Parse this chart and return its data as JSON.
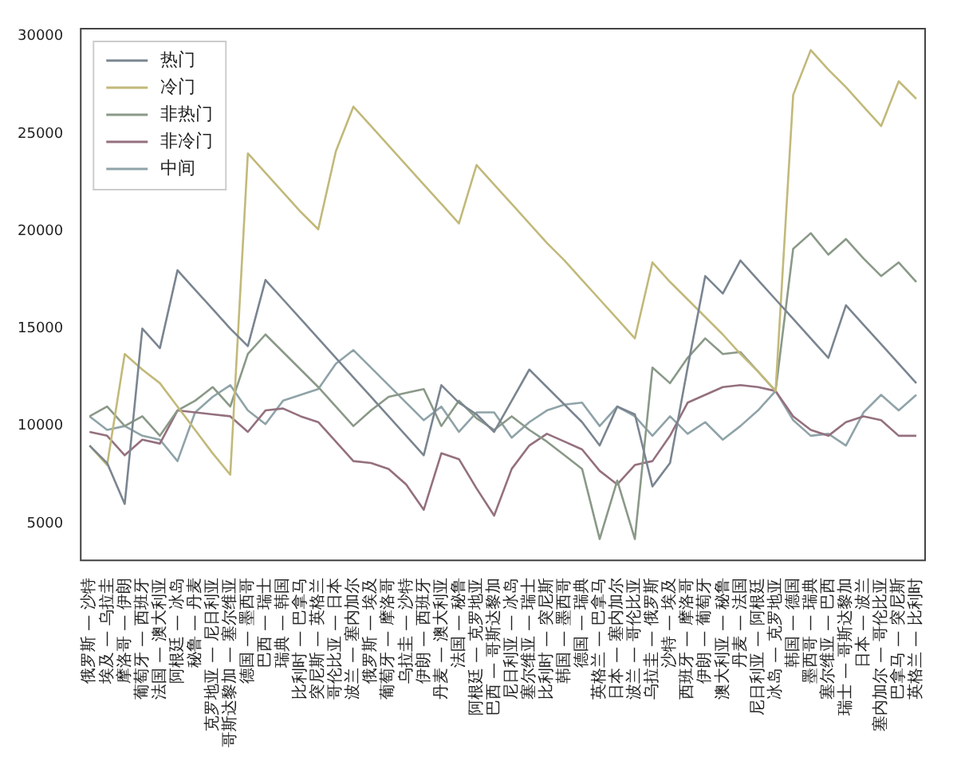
{
  "chart_data": {
    "type": "line",
    "categories": [
      "俄罗斯 — 沙特",
      "埃及 — 乌拉圭",
      "摩洛哥 — 伊朗",
      "葡萄牙 — 西班牙",
      "法国 — 澳大利亚",
      "阿根廷 — 冰岛",
      "秘鲁 — 丹麦",
      "克罗地亚 — 尼日利亚",
      "哥斯达黎加 — 塞尔维亚",
      "德国 — 墨西哥",
      "巴西 — 瑞士",
      "瑞典 — 韩国",
      "比利时 — 巴拿马",
      "突尼斯 — 英格兰",
      "哥伦比亚 — 日本",
      "波兰 — 塞内加尔",
      "俄罗斯 — 埃及",
      "葡萄牙 — 摩洛哥",
      "乌拉圭 — 沙特",
      "伊朗 — 西班牙",
      "丹麦 — 澳大利亚",
      "法国 — 秘鲁",
      "阿根廷 — 克罗地亚",
      "巴西 — 哥斯达黎加",
      "尼日利亚 — 冰岛",
      "塞尔维亚 — 瑞士",
      "比利时 — 突尼斯",
      "韩国 — 墨西哥",
      "德国 — 瑞典",
      "英格兰 — 巴拿马",
      "日本 — 塞内加尔",
      "波兰 — 哥伦比亚",
      "乌拉圭 — 俄罗斯",
      "沙特 — 埃及",
      "西班牙 — 摩洛哥",
      "伊朗 — 葡萄牙",
      "澳大利亚 — 秘鲁",
      "丹麦 — 法国",
      "尼日利亚 — 阿根廷",
      "冰岛 — 克罗地亚",
      "韩国 — 德国",
      "墨西哥 — 瑞典",
      "塞尔维亚 — 巴西",
      "瑞士 — 哥斯达黎加",
      "日本 — 波兰",
      "塞内加尔 — 哥伦比亚",
      "巴拿马 — 突尼斯",
      "英格兰 — 比利时"
    ],
    "series": [
      {
        "name": "热门",
        "color": "#7a8590",
        "values": [
          9000,
          8100,
          6000,
          15000,
          14000,
          18000,
          17000,
          16000,
          15000,
          14100,
          17500,
          16500,
          15500,
          14500,
          13500,
          12500,
          11500,
          10500,
          9500,
          8500,
          12100,
          11200,
          10600,
          9700,
          11300,
          12900,
          12000,
          11100,
          10200,
          9000,
          11000,
          10600,
          6900,
          8100,
          13000,
          17700,
          16800,
          18500,
          17500,
          16500,
          15500,
          14500,
          13500,
          16200,
          15200,
          14200,
          13200,
          12200
        ]
      },
      {
        "name": "冷门",
        "color": "#c2b97a",
        "values": [
          9000,
          8000,
          13700,
          12900,
          12200,
          11000,
          9800,
          8600,
          7500,
          24000,
          23000,
          22000,
          21000,
          20100,
          24100,
          26400,
          25400,
          24400,
          23400,
          22400,
          21400,
          20400,
          23400,
          22400,
          21400,
          20400,
          19400,
          18500,
          17500,
          16500,
          15500,
          14500,
          18400,
          17400,
          16500,
          15600,
          14700,
          13700,
          12800,
          11800,
          27000,
          29300,
          28300,
          27400,
          26400,
          25400,
          27700,
          26800
        ]
      },
      {
        "name": "非热门",
        "color": "#8a9988",
        "values": [
          10500,
          11000,
          10000,
          10500,
          9500,
          10800,
          11300,
          12000,
          11000,
          13700,
          14700,
          13800,
          12900,
          12000,
          11000,
          10000,
          10800,
          11500,
          11700,
          11900,
          10000,
          11300,
          10400,
          9800,
          10500,
          9800,
          9200,
          8500,
          7800,
          4200,
          7200,
          4200,
          13000,
          12200,
          13500,
          14500,
          13700,
          13800,
          12800,
          11800,
          19100,
          19900,
          18800,
          19600,
          18600,
          17700,
          18400,
          17400
        ]
      },
      {
        "name": "非冷门",
        "color": "#94707e",
        "values": [
          9700,
          9500,
          8500,
          9300,
          9100,
          10800,
          10700,
          10600,
          10500,
          9700,
          10800,
          10900,
          10500,
          10200,
          9200,
          8200,
          8100,
          7800,
          7000,
          5700,
          8600,
          8300,
          6800,
          5400,
          7800,
          9000,
          9600,
          9200,
          8800,
          7700,
          7000,
          8000,
          8200,
          9500,
          11200,
          11600,
          12000,
          12100,
          12000,
          11800,
          10500,
          9800,
          9500,
          10200,
          10500,
          10300,
          9500,
          9500
        ]
      },
      {
        "name": "中间",
        "color": "#8fa3a8",
        "values": [
          10500,
          9800,
          10000,
          9500,
          9300,
          8200,
          10700,
          11500,
          12100,
          10800,
          10100,
          11300,
          11600,
          11900,
          13200,
          13900,
          13000,
          12100,
          11200,
          10300,
          11000,
          9700,
          10700,
          10700,
          9400,
          10200,
          10800,
          11100,
          11200,
          10000,
          11000,
          10500,
          9500,
          10500,
          9600,
          10200,
          9300,
          10000,
          10800,
          11800,
          10300,
          9500,
          9600,
          9000,
          10700,
          11600,
          10800,
          11600
        ]
      }
    ],
    "ylim": [
      3100,
      30400
    ],
    "yticks": [
      5000,
      10000,
      15000,
      20000,
      25000,
      30000
    ],
    "legend": "top left",
    "grid": false,
    "marker": "none",
    "line_style": "solid"
  }
}
